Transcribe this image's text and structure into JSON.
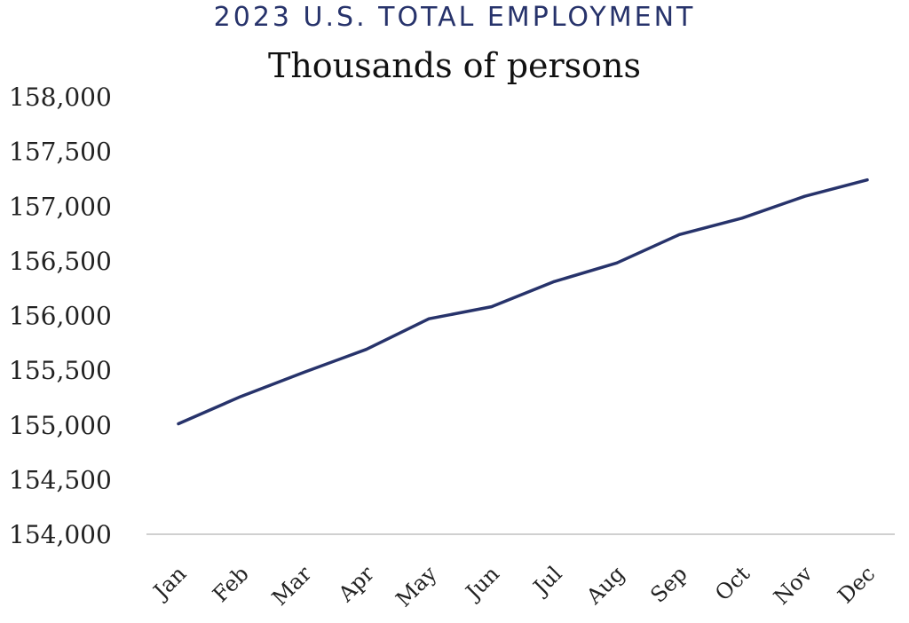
{
  "chart_data": {
    "type": "line",
    "title": "2023 U.S. TOTAL EMPLOYMENT",
    "subtitle": "Thousands of persons",
    "categories": [
      "Jan",
      "Feb",
      "Mar",
      "Apr",
      "May",
      "Jun",
      "Jul",
      "Aug",
      "Sep",
      "Oct",
      "Nov",
      "Dec"
    ],
    "series": [
      {
        "values": [
          155010,
          155260,
          155480,
          155690,
          155970,
          156080,
          156310,
          156480,
          156740,
          156890,
          157090,
          157240
        ],
        "color": "#27336b"
      }
    ],
    "ylim": [
      154000,
      158000
    ],
    "yticks": [
      "154,000",
      "154,500",
      "155,000",
      "155,500",
      "156,000",
      "156,500",
      "157,000",
      "157,500",
      "158,000"
    ],
    "ytick_values": [
      154000,
      154500,
      155000,
      155500,
      156000,
      156500,
      157000,
      157500,
      158000
    ],
    "grid": false,
    "legend": "none"
  }
}
